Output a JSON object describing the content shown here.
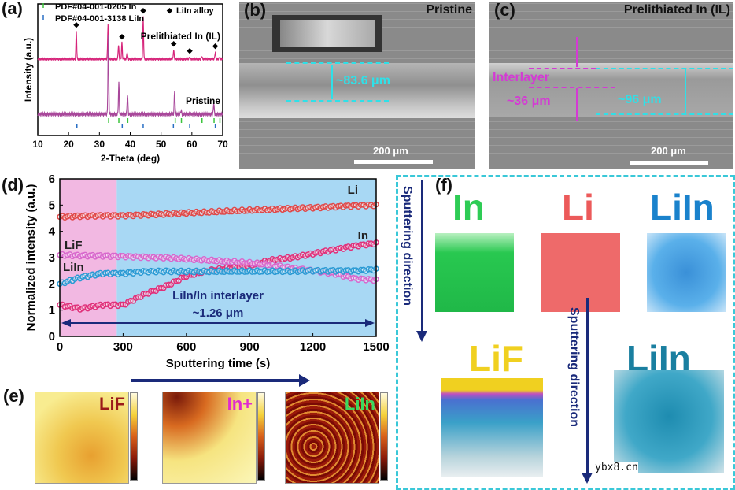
{
  "panel_labels": {
    "a": "(a)",
    "b": "(b)",
    "c": "(c)",
    "d": "(d)",
    "e": "(e)",
    "f": "(f)"
  },
  "chart_data": [
    {
      "type": "line",
      "panel": "a",
      "xlabel": "2-Theta (deg)",
      "ylabel": "Intensity (a.u.)",
      "xlim": [
        10,
        70
      ],
      "xticks": [
        "10",
        "20",
        "30",
        "40",
        "50",
        "60",
        "70"
      ],
      "legend": [
        "PDF#04-001-0205 In",
        "PDF#04-001-3138 LiIn",
        "LiIn alloy"
      ],
      "series": [
        {
          "name": "Prelithiated In (IL)",
          "color": "#d6247a",
          "peaks": [
            [
              22.5,
              0.6
            ],
            [
              32.8,
              0.75
            ],
            [
              36.2,
              0.3
            ],
            [
              37.3,
              0.35
            ],
            [
              39.0,
              0.15
            ],
            [
              44.2,
              0.9
            ],
            [
              54.1,
              0.2
            ],
            [
              59.3,
              0.05
            ],
            [
              63.2,
              0.07
            ],
            [
              67.6,
              0.15
            ],
            [
              69.0,
              0.05
            ]
          ]
        },
        {
          "name": "Pristine",
          "color": "#a8479a",
          "peaks": [
            [
              32.9,
              1.0
            ],
            [
              36.3,
              0.4
            ],
            [
              39.1,
              0.25
            ],
            [
              54.4,
              0.3
            ],
            [
              56.5,
              0.05
            ],
            [
              67.1,
              0.15
            ]
          ]
        }
      ],
      "lialloy_markers": [
        22.5,
        37.3,
        44.2,
        54.1,
        59.3,
        67.6
      ],
      "ref_In": [
        33.0,
        36.3,
        39.2,
        54.6,
        56.6,
        63.3,
        67.2,
        69.1
      ],
      "ref_LiIn": [
        22.7,
        37.4,
        44.2,
        54.0,
        59.3,
        67.6
      ],
      "colors": {
        "In": "#3cc43c",
        "LiIn": "#2a6fc4"
      }
    },
    {
      "type": "scatter",
      "panel": "d",
      "xlabel": "Sputtering time (s)",
      "ylabel": "Normalized intensity (a.u.)",
      "xlim": [
        0,
        1500
      ],
      "ylim": [
        0,
        6
      ],
      "xticks": [
        "0",
        "300",
        "600",
        "900",
        "1200",
        "1500"
      ],
      "yticks": [
        "0",
        "1",
        "2",
        "3",
        "4",
        "5",
        "6"
      ],
      "regions": [
        {
          "from": 0,
          "to": 270,
          "color": "#f2b8e2"
        },
        {
          "from": 270,
          "to": 1500,
          "color": "#a8d8f4"
        }
      ],
      "annotation": "LiIn/In interlayer",
      "annotation2": "~1.26 μm",
      "x": [
        0,
        100,
        200,
        300,
        400,
        500,
        600,
        700,
        800,
        900,
        1000,
        1100,
        1200,
        1300,
        1400,
        1500
      ],
      "series": [
        {
          "name": "Li",
          "color": "#e04848",
          "values": [
            4.55,
            4.58,
            4.6,
            4.6,
            4.63,
            4.66,
            4.7,
            4.73,
            4.77,
            4.8,
            4.83,
            4.87,
            4.9,
            4.94,
            4.98,
            5.0
          ]
        },
        {
          "name": "In",
          "color": "#e0307a",
          "values": [
            1.2,
            1.05,
            1.2,
            1.2,
            1.6,
            1.9,
            2.3,
            2.5,
            2.6,
            2.7,
            2.9,
            3.0,
            3.15,
            3.3,
            3.45,
            3.55
          ]
        },
        {
          "name": "LiF",
          "color": "#d866cc",
          "values": [
            3.1,
            3.08,
            3.07,
            3.05,
            3.02,
            3.0,
            2.95,
            2.9,
            2.85,
            2.8,
            2.72,
            2.6,
            2.5,
            2.4,
            2.2,
            2.15
          ]
        },
        {
          "name": "LiIn",
          "color": "#2a9ad4",
          "values": [
            2.0,
            2.25,
            2.4,
            2.4,
            2.47,
            2.48,
            2.47,
            2.47,
            2.48,
            2.48,
            2.48,
            2.48,
            2.5,
            2.5,
            2.5,
            2.55
          ]
        }
      ]
    }
  ],
  "panel_b": {
    "title": "Pristine",
    "thickness": "~83.6 μm",
    "scale": "200 μm"
  },
  "panel_c": {
    "title": "Prelithiated In (IL)",
    "interlayer": "Interlayer",
    "interlayer_thickness": "~36 μm",
    "total": "~96 μm",
    "scale": "200 μm"
  },
  "panel_e": {
    "maps": [
      "LiF",
      "In+",
      "LiIn"
    ]
  },
  "panel_f": {
    "top": [
      "In",
      "Li",
      "LiIn"
    ],
    "bottom": [
      "LiF",
      "LiIn"
    ],
    "direction": "Sputtering direction",
    "colors": {
      "In": "#2ecc55",
      "Li": "#ec5a5a",
      "LiIn": "#1a82cc",
      "LiF": "#f0d020",
      "LiIn2": "#1a7fa0"
    }
  },
  "watermark": "ybx8.cn"
}
